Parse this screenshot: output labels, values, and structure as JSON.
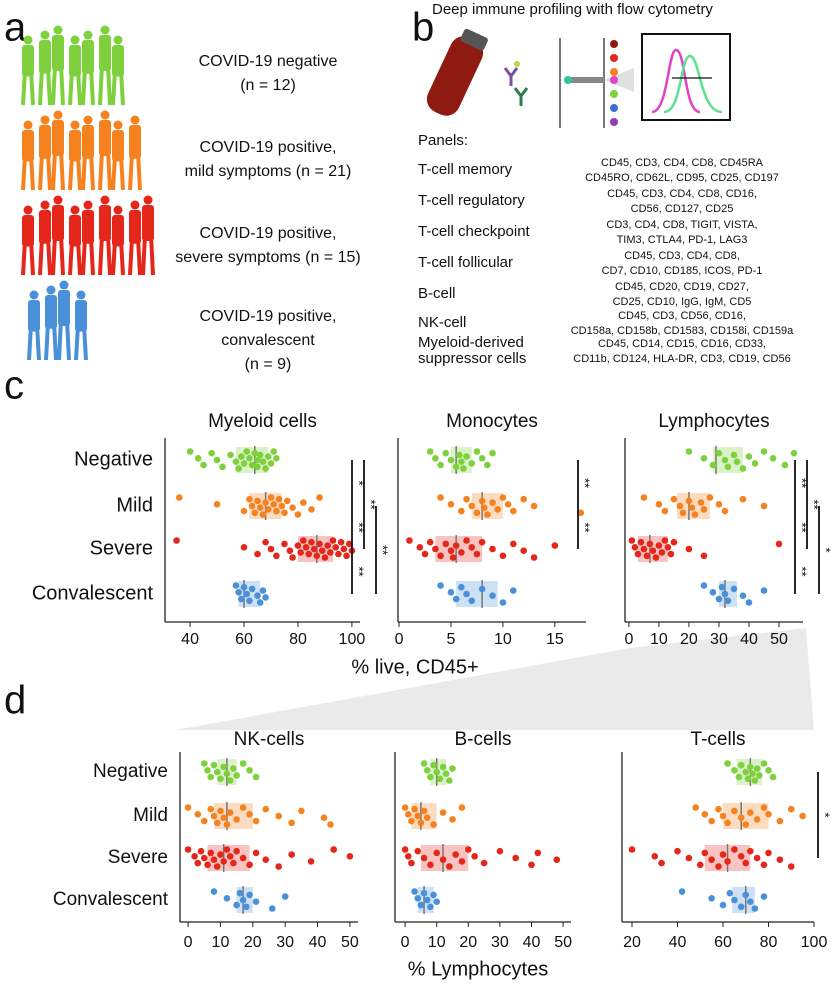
{
  "panel_labels": [
    "a",
    "b",
    "c",
    "d"
  ],
  "cohorts": [
    {
      "lines": [
        "COVID-19 negative",
        "(n = 12)"
      ]
    },
    {
      "lines": [
        "COVID-19 positive,",
        "mild symptoms (n = 21)"
      ]
    },
    {
      "lines": [
        "COVID-19 positive,",
        "severe symptoms (n = 15)"
      ]
    },
    {
      "lines": [
        "COVID-19 positive,",
        "convalescent",
        "(n = 9)"
      ]
    }
  ],
  "profiling": {
    "title": "Deep immune profiling with flow cytometry",
    "heading": "Panels:",
    "panels": [
      {
        "name": [
          "T-cell memory"
        ],
        "markers": [
          "CD45, CD3, CD4, CD8, CD45RA",
          "CD45RO, CD62L, CD95, CD25, CD197"
        ]
      },
      {
        "name": [
          "T-cell regulatory"
        ],
        "markers": [
          "CD45, CD3, CD4, CD8, CD16,",
          "CD56, CD127, CD25"
        ]
      },
      {
        "name": [
          "T-cell checkpoint"
        ],
        "markers": [
          "CD3, CD4, CD8, TIGIT, VISTA,",
          "TIM3, CTLA4, PD-1, LAG3"
        ]
      },
      {
        "name": [
          "T-cell follicular"
        ],
        "markers": [
          "CD45, CD3, CD4, CD8,",
          "CD7, CD10, CD185, ICOS, PD-1"
        ]
      },
      {
        "name": [
          "B-cell"
        ],
        "markers": [
          "CD45, CD20, CD19, CD27,",
          "CD25, CD10, IgG, IgM, CD5"
        ]
      },
      {
        "name": [
          "NK-cell"
        ],
        "markers": [
          "CD45, CD3, CD56, CD16,",
          "CD158a, CD158b, CD1583, CD158i, CD159a"
        ]
      },
      {
        "name": [
          "Myeloid-derived",
          "suppressor cells"
        ],
        "markers": [
          "CD45, CD14, CD15, CD16, CD33,",
          "CD11b, CD124, HLA-DR, CD3, CD19, CD56"
        ]
      }
    ]
  },
  "axis_labels": [
    "% live, CD45+",
    "% Lymphocytes"
  ],
  "chart_data": [
    {
      "type": "strip",
      "title": "Myeloid cells",
      "categories": [
        "Negative",
        "Mild",
        "Severe",
        "Convalescent"
      ],
      "xlim": [
        30.7,
        103
      ],
      "xticks": [
        40,
        60,
        80,
        100
      ],
      "groups": [
        {
          "color": "#7ed13d",
          "box": [
            57,
            64,
            69
          ],
          "values": [
            40,
            43,
            45,
            48,
            50,
            52,
            55,
            57,
            58,
            59,
            60,
            61,
            62,
            63,
            64,
            65,
            65,
            66,
            67,
            68,
            69,
            70,
            71,
            72
          ]
        },
        {
          "color": "#f5821f",
          "box": [
            62,
            68,
            74
          ],
          "values": [
            36,
            50,
            60,
            62,
            63,
            64,
            65,
            66,
            67,
            68,
            69,
            70,
            71,
            72,
            73,
            74,
            75,
            76,
            78,
            80,
            82,
            85,
            88
          ]
        },
        {
          "color": "#e5261b",
          "box": [
            80,
            87,
            93
          ],
          "values": [
            35,
            60,
            65,
            68,
            70,
            72,
            75,
            77,
            78,
            80,
            81,
            82,
            83,
            84,
            85,
            86,
            87,
            88,
            89,
            90,
            91,
            92,
            93,
            94,
            95,
            96,
            97,
            98,
            99,
            100
          ]
        },
        {
          "color": "#4a90d9",
          "box": [
            58,
            60,
            66
          ],
          "values": [
            57,
            58,
            59,
            60,
            61,
            62,
            63,
            65,
            66,
            67,
            68
          ]
        }
      ],
      "significance": [
        {
          "pair": [
            0,
            1
          ],
          "label": "*"
        },
        {
          "pair": [
            1,
            2
          ],
          "label": "**"
        },
        {
          "pair": [
            2,
            3
          ],
          "label": "**"
        },
        {
          "pair": [
            0,
            2
          ],
          "label": "**"
        },
        {
          "pair": [
            1,
            3
          ],
          "label": "**"
        }
      ]
    },
    {
      "type": "strip",
      "title": "Monocytes",
      "xlim": [
        -0.1,
        18
      ],
      "xticks": [
        0,
        5,
        10,
        15
      ],
      "groups": [
        {
          "color": "#7ed13d",
          "box": [
            5,
            5.5,
            7
          ],
          "values": [
            3,
            3.5,
            4,
            4.5,
            5,
            5.5,
            5.8,
            6,
            6.2,
            6.5,
            7,
            7.5,
            8,
            8.5,
            9
          ]
        },
        {
          "color": "#f5821f",
          "box": [
            7,
            8,
            10
          ],
          "values": [
            4,
            5,
            6,
            6.5,
            7,
            7.5,
            8,
            8.2,
            8.5,
            9,
            9.5,
            10,
            10.5,
            11,
            12,
            13,
            17.5
          ]
        },
        {
          "color": "#e5261b",
          "box": [
            3.5,
            5.5,
            8
          ],
          "values": [
            1,
            2,
            2.5,
            3,
            3.5,
            4,
            4.5,
            5,
            5.2,
            5.5,
            6,
            6.5,
            7,
            7.5,
            8,
            9,
            10,
            11,
            12,
            13,
            15
          ]
        },
        {
          "color": "#4a90d9",
          "box": [
            5.5,
            8,
            9.5
          ],
          "values": [
            4,
            5,
            5.5,
            6,
            6.5,
            7,
            8,
            9,
            10,
            11
          ]
        }
      ],
      "significance": [
        {
          "pair": [
            0,
            1
          ],
          "label": "**"
        },
        {
          "pair": [
            1,
            2
          ],
          "label": "**"
        }
      ]
    },
    {
      "type": "strip",
      "title": "Lymphocytes",
      "xlim": [
        -1.3,
        58
      ],
      "xticks": [
        0,
        10,
        20,
        30,
        40,
        50
      ],
      "groups": [
        {
          "color": "#7ed13d",
          "box": [
            28,
            29,
            38
          ],
          "values": [
            20,
            25,
            28,
            30,
            32,
            33,
            35,
            36,
            38,
            40,
            42,
            45,
            48,
            52,
            55
          ]
        },
        {
          "color": "#f5821f",
          "box": [
            16,
            20,
            27
          ],
          "values": [
            5,
            10,
            12,
            15,
            17,
            18,
            20,
            21,
            22,
            24,
            25,
            27,
            30,
            32,
            38,
            45
          ]
        },
        {
          "color": "#e5261b",
          "box": [
            3,
            7,
            13
          ],
          "values": [
            1,
            2,
            3,
            4,
            5,
            6,
            7,
            8,
            9,
            10,
            11,
            12,
            13,
            14,
            15,
            20,
            25,
            50
          ]
        },
        {
          "color": "#4a90d9",
          "box": [
            30,
            32,
            36
          ],
          "values": [
            25,
            28,
            30,
            31,
            32,
            33,
            35,
            38,
            40,
            45
          ]
        }
      ],
      "significance": [
        {
          "pair": [
            0,
            1
          ],
          "label": "**"
        },
        {
          "pair": [
            1,
            2
          ],
          "label": "**"
        },
        {
          "pair": [
            2,
            3
          ],
          "label": "**"
        },
        {
          "pair": [
            0,
            2
          ],
          "label": "**"
        },
        {
          "pair": [
            1,
            3
          ],
          "label": "*"
        }
      ]
    },
    {
      "type": "strip",
      "title": "NK-cells",
      "categories": [
        "Negative",
        "Mild",
        "Severe",
        "Convalescent"
      ],
      "xlim": [
        -2.5,
        52.5
      ],
      "xticks": [
        0,
        10,
        20,
        30,
        40,
        50
      ],
      "groups": [
        {
          "color": "#7ed13d",
          "box": [
            9,
            12,
            15
          ],
          "values": [
            5,
            6,
            7,
            8,
            9,
            10,
            11,
            12,
            13,
            14,
            15,
            17,
            19,
            21
          ]
        },
        {
          "color": "#f5821f",
          "box": [
            8,
            12,
            20
          ],
          "values": [
            0,
            3,
            5,
            7,
            8,
            9,
            10,
            11,
            12,
            13,
            15,
            17,
            19,
            21,
            24,
            28,
            32,
            35,
            42,
            44
          ]
        },
        {
          "color": "#e5261b",
          "box": [
            6,
            11,
            19
          ],
          "values": [
            0,
            2,
            3,
            4,
            5,
            6,
            7,
            8,
            9,
            10,
            11,
            12,
            13,
            14,
            15,
            17,
            19,
            21,
            24,
            28,
            32,
            38,
            45,
            50
          ]
        },
        {
          "color": "#4a90d9",
          "box": [
            15,
            17,
            20
          ],
          "values": [
            8,
            12,
            15,
            16,
            17,
            18,
            19,
            21,
            26,
            30
          ]
        }
      ],
      "significance": []
    },
    {
      "type": "strip",
      "title": "B-cells",
      "xlim": [
        -3.2,
        52.5
      ],
      "xticks": [
        0,
        10,
        20,
        30,
        40,
        50
      ],
      "groups": [
        {
          "color": "#7ed13d",
          "box": [
            8,
            10,
            13
          ],
          "values": [
            6,
            7,
            8,
            9,
            10,
            11,
            12,
            13,
            14,
            15
          ]
        },
        {
          "color": "#f5821f",
          "box": [
            2,
            5,
            10
          ],
          "values": [
            0,
            1,
            2,
            3,
            4,
            5,
            6,
            7,
            9,
            12,
            15,
            18
          ]
        },
        {
          "color": "#e5261b",
          "box": [
            5,
            12,
            20
          ],
          "values": [
            0,
            1,
            2,
            4,
            6,
            8,
            10,
            12,
            14,
            16,
            18,
            20,
            22,
            25,
            30,
            35,
            40,
            42,
            48
          ]
        },
        {
          "color": "#4a90d9",
          "box": [
            4,
            6,
            9
          ],
          "values": [
            3,
            4,
            5,
            6,
            7,
            8,
            9,
            10
          ]
        }
      ],
      "significance": []
    },
    {
      "type": "strip",
      "title": "T-cells",
      "xlim": [
        15.6,
        100
      ],
      "xticks": [
        20,
        40,
        60,
        80,
        100
      ],
      "groups": [
        {
          "color": "#7ed13d",
          "box": [
            66,
            72,
            77
          ],
          "values": [
            62,
            65,
            67,
            68,
            70,
            71,
            72,
            73,
            74,
            75,
            76,
            78,
            80,
            82
          ]
        },
        {
          "color": "#f5821f",
          "box": [
            60,
            68,
            80
          ],
          "values": [
            48,
            52,
            55,
            58,
            60,
            62,
            65,
            68,
            70,
            72,
            75,
            78,
            80,
            85,
            90,
            95
          ]
        },
        {
          "color": "#e5261b",
          "box": [
            52,
            62,
            72
          ],
          "values": [
            20,
            30,
            33,
            40,
            45,
            50,
            52,
            55,
            58,
            60,
            62,
            65,
            68,
            70,
            72,
            75,
            78,
            80,
            85,
            90
          ]
        },
        {
          "color": "#4a90d9",
          "box": [
            64,
            70,
            74
          ],
          "values": [
            42,
            55,
            60,
            63,
            65,
            68,
            70,
            72,
            74,
            78
          ]
        }
      ],
      "significance": [
        {
          "pair": [
            0,
            2
          ],
          "label": "*"
        }
      ]
    }
  ]
}
